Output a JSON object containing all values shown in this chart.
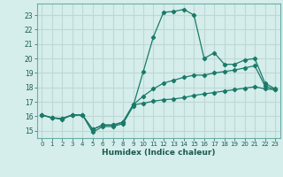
{
  "title": "",
  "xlabel": "Humidex (Indice chaleur)",
  "bg_color": "#d5eeeb",
  "grid_color": "#c0d8d5",
  "line_color": "#1a7a6a",
  "x_ticks": [
    0,
    1,
    2,
    3,
    4,
    5,
    6,
    7,
    8,
    9,
    10,
    11,
    12,
    13,
    14,
    15,
    16,
    17,
    18,
    19,
    20,
    21,
    22,
    23
  ],
  "y_ticks": [
    15,
    16,
    17,
    18,
    19,
    20,
    21,
    22,
    23
  ],
  "xlim": [
    -0.5,
    23.5
  ],
  "ylim": [
    14.5,
    23.8
  ],
  "line1_y": [
    16.1,
    15.9,
    15.8,
    16.1,
    16.1,
    14.9,
    15.3,
    15.3,
    15.5,
    16.7,
    19.1,
    21.5,
    23.2,
    23.25,
    23.4,
    23.0,
    20.0,
    20.4,
    19.6,
    19.6,
    19.9,
    20.0,
    18.3,
    17.9
  ],
  "line2_y": [
    16.1,
    15.9,
    15.85,
    16.1,
    16.1,
    15.1,
    15.4,
    15.4,
    15.6,
    16.8,
    17.4,
    17.9,
    18.3,
    18.5,
    18.7,
    18.85,
    18.85,
    19.0,
    19.1,
    19.2,
    19.35,
    19.5,
    18.1,
    17.85
  ],
  "line3_y": [
    16.1,
    15.9,
    15.85,
    16.1,
    16.1,
    15.1,
    15.4,
    15.4,
    15.6,
    16.8,
    16.9,
    17.05,
    17.15,
    17.2,
    17.3,
    17.45,
    17.55,
    17.65,
    17.75,
    17.85,
    17.95,
    18.05,
    17.9,
    17.85
  ]
}
